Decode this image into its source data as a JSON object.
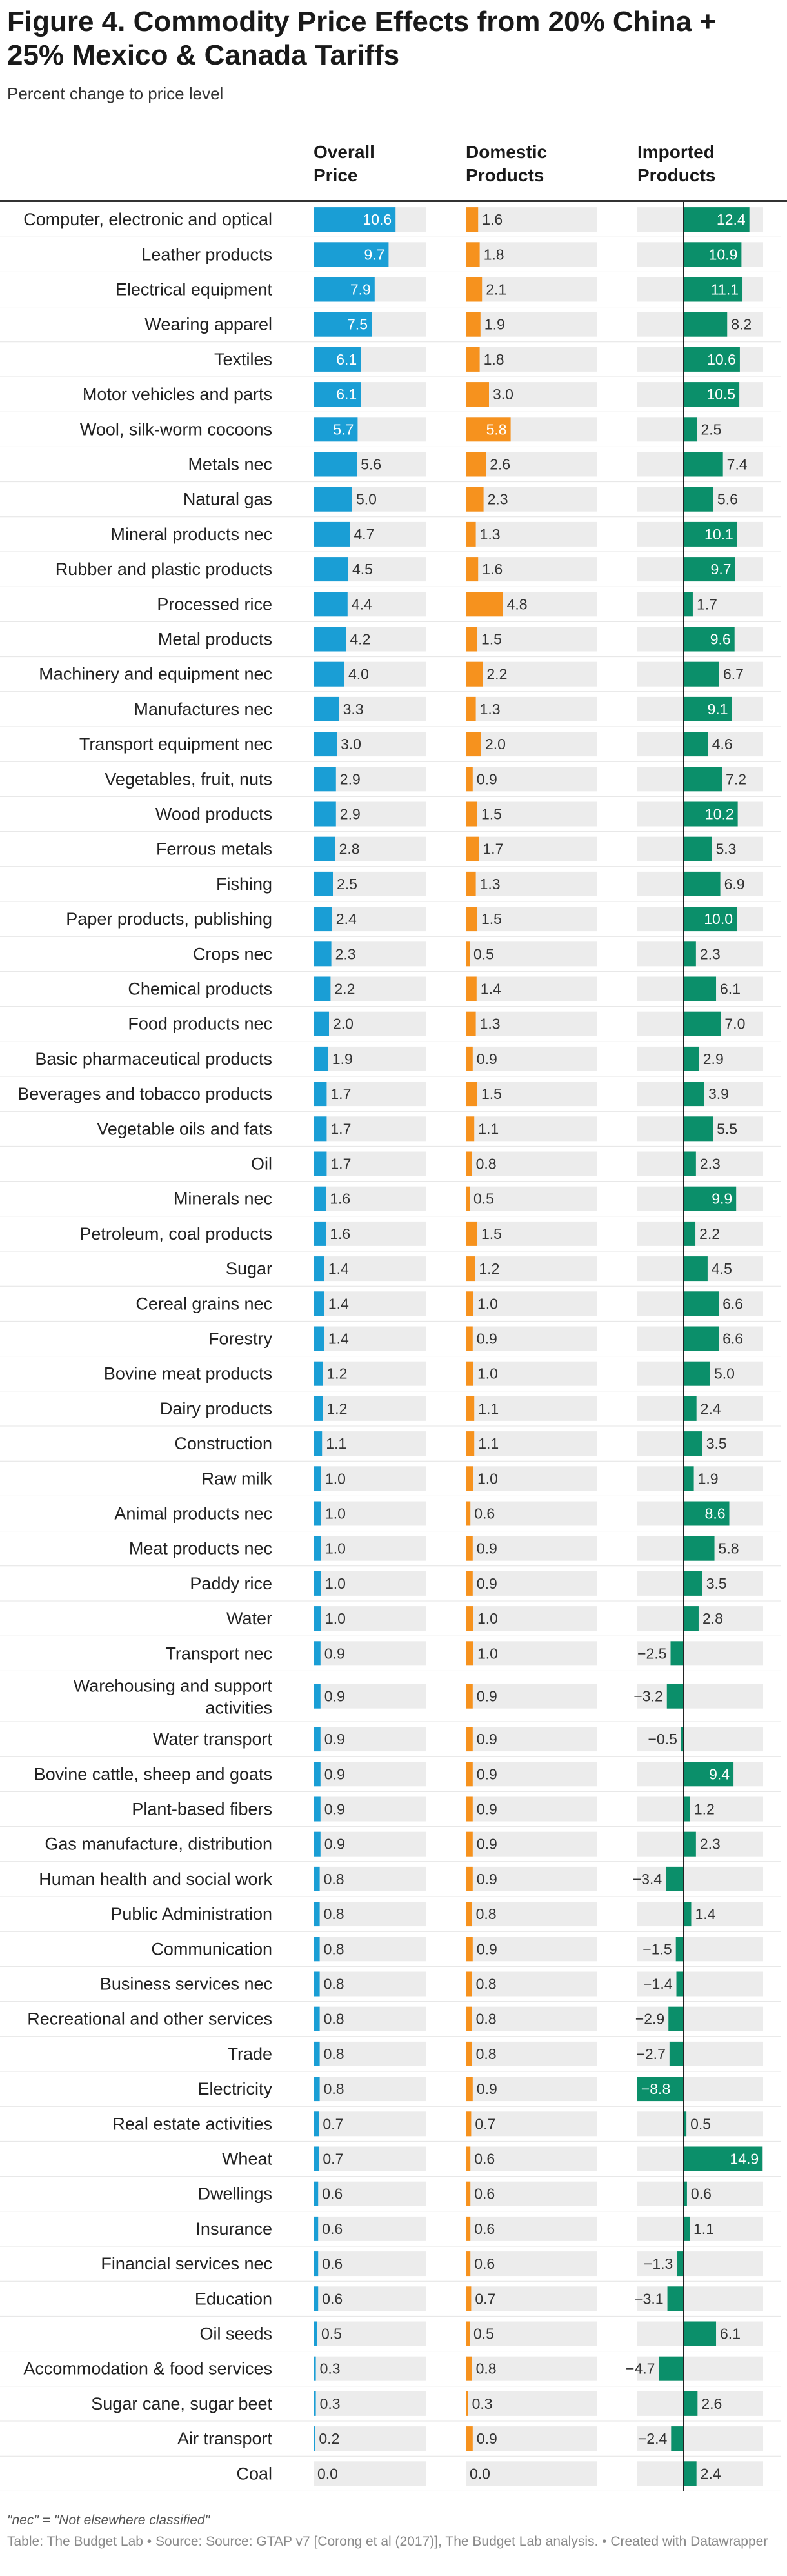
{
  "page": {
    "title": "Figure 4. Commodity Price Effects from 20% China + 25% Mexico & Canada Tariffs",
    "subtitle": "Percent change to price level",
    "footnote": "\"nec\" = \"Not elsewhere classified\"",
    "footer": "Table: The Budget Lab • Source: Source: GTAP v7 [Corong et al (2017)], The Budget Lab analysis. • Created with Datawrapper"
  },
  "colors": {
    "overall": "#1a9ed5",
    "domestic": "#f6921e",
    "imported": "#0b8f6a",
    "track": "#ececec",
    "rule": "#333333",
    "axis": "#222222"
  },
  "chart_data": {
    "type": "table",
    "columns": [
      {
        "key": "overall",
        "label": "Overall\nPrice",
        "min": 0,
        "max": 14.9
      },
      {
        "key": "domestic",
        "label": "Domestic\nProducts",
        "min": 0,
        "max": 14.9
      },
      {
        "key": "imported",
        "label": "Imported\nProducts",
        "min": -8.8,
        "max": 14.9
      }
    ],
    "rows": [
      {
        "label": "Computer, electronic and optical",
        "overall": 10.6,
        "domestic": 1.6,
        "imported": 12.4
      },
      {
        "label": "Leather products",
        "overall": 9.7,
        "domestic": 1.8,
        "imported": 10.9
      },
      {
        "label": "Electrical equipment",
        "overall": 7.9,
        "domestic": 2.1,
        "imported": 11.1
      },
      {
        "label": "Wearing apparel",
        "overall": 7.5,
        "domestic": 1.9,
        "imported": 8.2
      },
      {
        "label": "Textiles",
        "overall": 6.1,
        "domestic": 1.8,
        "imported": 10.6
      },
      {
        "label": "Motor vehicles and parts",
        "overall": 6.1,
        "domestic": 3.0,
        "imported": 10.5
      },
      {
        "label": "Wool, silk-worm cocoons",
        "overall": 5.7,
        "domestic": 5.8,
        "imported": 2.5
      },
      {
        "label": "Metals nec",
        "overall": 5.6,
        "domestic": 2.6,
        "imported": 7.4
      },
      {
        "label": "Natural gas",
        "overall": 5.0,
        "domestic": 2.3,
        "imported": 5.6
      },
      {
        "label": "Mineral products nec",
        "overall": 4.7,
        "domestic": 1.3,
        "imported": 10.1
      },
      {
        "label": "Rubber and plastic products",
        "overall": 4.5,
        "domestic": 1.6,
        "imported": 9.7
      },
      {
        "label": "Processed rice",
        "overall": 4.4,
        "domestic": 4.8,
        "imported": 1.7
      },
      {
        "label": "Metal products",
        "overall": 4.2,
        "domestic": 1.5,
        "imported": 9.6
      },
      {
        "label": "Machinery and equipment nec",
        "overall": 4.0,
        "domestic": 2.2,
        "imported": 6.7
      },
      {
        "label": "Manufactures nec",
        "overall": 3.3,
        "domestic": 1.3,
        "imported": 9.1
      },
      {
        "label": "Transport equipment nec",
        "overall": 3.0,
        "domestic": 2.0,
        "imported": 4.6
      },
      {
        "label": "Vegetables, fruit, nuts",
        "overall": 2.9,
        "domestic": 0.9,
        "imported": 7.2
      },
      {
        "label": "Wood products",
        "overall": 2.9,
        "domestic": 1.5,
        "imported": 10.2
      },
      {
        "label": "Ferrous metals",
        "overall": 2.8,
        "domestic": 1.7,
        "imported": 5.3
      },
      {
        "label": "Fishing",
        "overall": 2.5,
        "domestic": 1.3,
        "imported": 6.9
      },
      {
        "label": "Paper products, publishing",
        "overall": 2.4,
        "domestic": 1.5,
        "imported": 10.0
      },
      {
        "label": "Crops nec",
        "overall": 2.3,
        "domestic": 0.5,
        "imported": 2.3
      },
      {
        "label": "Chemical products",
        "overall": 2.2,
        "domestic": 1.4,
        "imported": 6.1
      },
      {
        "label": "Food products nec",
        "overall": 2.0,
        "domestic": 1.3,
        "imported": 7.0
      },
      {
        "label": "Basic pharmaceutical products",
        "overall": 1.9,
        "domestic": 0.9,
        "imported": 2.9
      },
      {
        "label": "Beverages and tobacco products",
        "overall": 1.7,
        "domestic": 1.5,
        "imported": 3.9
      },
      {
        "label": "Vegetable oils and fats",
        "overall": 1.7,
        "domestic": 1.1,
        "imported": 5.5
      },
      {
        "label": "Oil",
        "overall": 1.7,
        "domestic": 0.8,
        "imported": 2.3
      },
      {
        "label": "Minerals nec",
        "overall": 1.6,
        "domestic": 0.5,
        "imported": 9.9
      },
      {
        "label": "Petroleum, coal products",
        "overall": 1.6,
        "domestic": 1.5,
        "imported": 2.2
      },
      {
        "label": "Sugar",
        "overall": 1.4,
        "domestic": 1.2,
        "imported": 4.5
      },
      {
        "label": "Cereal grains nec",
        "overall": 1.4,
        "domestic": 1.0,
        "imported": 6.6
      },
      {
        "label": "Forestry",
        "overall": 1.4,
        "domestic": 0.9,
        "imported": 6.6
      },
      {
        "label": "Bovine meat products",
        "overall": 1.2,
        "domestic": 1.0,
        "imported": 5.0
      },
      {
        "label": "Dairy products",
        "overall": 1.2,
        "domestic": 1.1,
        "imported": 2.4
      },
      {
        "label": "Construction",
        "overall": 1.1,
        "domestic": 1.1,
        "imported": 3.5
      },
      {
        "label": "Raw milk",
        "overall": 1.0,
        "domestic": 1.0,
        "imported": 1.9
      },
      {
        "label": "Animal products nec",
        "overall": 1.0,
        "domestic": 0.6,
        "imported": 8.6
      },
      {
        "label": "Meat products nec",
        "overall": 1.0,
        "domestic": 0.9,
        "imported": 5.8
      },
      {
        "label": "Paddy rice",
        "overall": 1.0,
        "domestic": 0.9,
        "imported": 3.5
      },
      {
        "label": "Water",
        "overall": 1.0,
        "domestic": 1.0,
        "imported": 2.8
      },
      {
        "label": "Transport nec",
        "overall": 0.9,
        "domestic": 1.0,
        "imported": -2.5
      },
      {
        "label": "Warehousing and support activities",
        "overall": 0.9,
        "domestic": 0.9,
        "imported": -3.2
      },
      {
        "label": "Water transport",
        "overall": 0.9,
        "domestic": 0.9,
        "imported": -0.5
      },
      {
        "label": "Bovine cattle, sheep and goats",
        "overall": 0.9,
        "domestic": 0.9,
        "imported": 9.4
      },
      {
        "label": "Plant-based fibers",
        "overall": 0.9,
        "domestic": 0.9,
        "imported": 1.2
      },
      {
        "label": "Gas manufacture, distribution",
        "overall": 0.9,
        "domestic": 0.9,
        "imported": 2.3
      },
      {
        "label": "Human health and social work",
        "overall": 0.8,
        "domestic": 0.9,
        "imported": -3.4
      },
      {
        "label": "Public Administration",
        "overall": 0.8,
        "domestic": 0.8,
        "imported": 1.4
      },
      {
        "label": "Communication",
        "overall": 0.8,
        "domestic": 0.9,
        "imported": -1.5
      },
      {
        "label": "Business services nec",
        "overall": 0.8,
        "domestic": 0.8,
        "imported": -1.4
      },
      {
        "label": "Recreational and other services",
        "overall": 0.8,
        "domestic": 0.8,
        "imported": -2.9
      },
      {
        "label": "Trade",
        "overall": 0.8,
        "domestic": 0.8,
        "imported": -2.7
      },
      {
        "label": "Electricity",
        "overall": 0.8,
        "domestic": 0.9,
        "imported": -8.8
      },
      {
        "label": "Real estate activities",
        "overall": 0.7,
        "domestic": 0.7,
        "imported": 0.5
      },
      {
        "label": "Wheat",
        "overall": 0.7,
        "domestic": 0.6,
        "imported": 14.9
      },
      {
        "label": "Dwellings",
        "overall": 0.6,
        "domestic": 0.6,
        "imported": 0.6
      },
      {
        "label": "Insurance",
        "overall": 0.6,
        "domestic": 0.6,
        "imported": 1.1
      },
      {
        "label": "Financial services nec",
        "overall": 0.6,
        "domestic": 0.6,
        "imported": -1.3
      },
      {
        "label": "Education",
        "overall": 0.6,
        "domestic": 0.7,
        "imported": -3.1
      },
      {
        "label": "Oil seeds",
        "overall": 0.5,
        "domestic": 0.5,
        "imported": 6.1
      },
      {
        "label": "Accommodation & food services",
        "overall": 0.3,
        "domestic": 0.8,
        "imported": -4.7
      },
      {
        "label": "Sugar cane, sugar beet",
        "overall": 0.3,
        "domestic": 0.3,
        "imported": 2.6
      },
      {
        "label": "Air transport",
        "overall": 0.2,
        "domestic": 0.9,
        "imported": -2.4
      },
      {
        "label": "Coal",
        "overall": 0.0,
        "domestic": 0.0,
        "imported": 2.4
      }
    ]
  }
}
